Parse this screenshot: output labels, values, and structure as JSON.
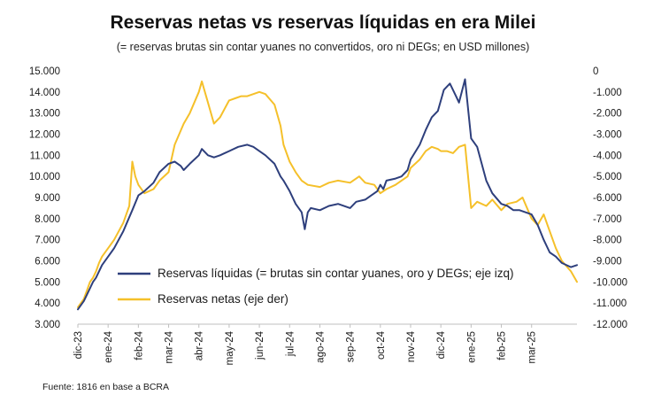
{
  "chart_data": {
    "type": "line",
    "title": "Reservas netas vs reservas líquidas en era Milei",
    "subtitle": "(= reservas brutas sin contar yuanes no convertidos, oro ni DEGs; en USD millones)",
    "source": "Fuente: 1816 en base a BCRA",
    "x_tick_labels": [
      "dic-23",
      "ene-24",
      "feb-24",
      "mar-24",
      "abr-24",
      "may-24",
      "jun-24",
      "jul-24",
      "ago-24",
      "sep-24",
      "oct-24",
      "nov-24",
      "dic-24",
      "ene-25",
      "feb-25",
      "mar-25"
    ],
    "y_left": {
      "ylim": [
        3000,
        15000
      ],
      "tick_labels": [
        "3.000",
        "4.000",
        "5.000",
        "6.000",
        "7.000",
        "8.000",
        "9.000",
        "10.000",
        "11.000",
        "12.000",
        "13.000",
        "14.000",
        "15.000"
      ]
    },
    "y_right": {
      "ylim": [
        -12000,
        0
      ],
      "tick_labels": [
        "-12.000",
        "-11.000",
        "-10.000",
        "-9.000",
        "-8.000",
        "-7.000",
        "-6.000",
        "-5.000",
        "-4.000",
        "-3.000",
        "-2.000",
        "-1.000",
        "0"
      ]
    },
    "legend_placement": "bottom-left",
    "series": [
      {
        "name": "Reservas líquidas (= brutas sin contar yuanes, oro y DEGs; eje izq)",
        "axis": "left",
        "color": "#2e3f7c",
        "x": [
          0,
          0.1,
          0.2,
          0.3,
          0.4,
          0.5,
          0.6,
          0.7,
          0.8,
          1.0,
          1.2,
          1.5,
          1.8,
          2.0,
          2.2,
          2.5,
          2.7,
          3.0,
          3.2,
          3.4,
          3.5,
          3.7,
          4.0,
          4.1,
          4.3,
          4.5,
          4.7,
          5.0,
          5.3,
          5.6,
          5.8,
          6.0,
          6.2,
          6.5,
          6.7,
          6.8,
          7.0,
          7.2,
          7.4,
          7.5,
          7.6,
          7.7,
          8.0,
          8.3,
          8.6,
          9.0,
          9.2,
          9.5,
          9.7,
          9.9,
          10.0,
          10.1,
          10.2,
          10.5,
          10.7,
          10.9,
          11.0,
          11.3,
          11.5,
          11.7,
          11.9,
          12.0,
          12.1,
          12.3,
          12.5,
          12.6,
          12.8,
          13.0,
          13.2,
          13.5,
          13.7,
          14.0,
          14.2,
          14.4,
          14.6,
          14.8,
          15.0,
          15.2,
          15.4,
          15.6,
          15.8,
          16.0,
          16.3,
          16.5
        ],
        "values": [
          3700,
          3900,
          4100,
          4400,
          4700,
          5000,
          5200,
          5500,
          5800,
          6200,
          6600,
          7400,
          8400,
          9100,
          9300,
          9700,
          10200,
          10600,
          10700,
          10500,
          10300,
          10600,
          11000,
          11300,
          11000,
          10900,
          11000,
          11200,
          11400,
          11500,
          11400,
          11200,
          11000,
          10600,
          10000,
          9800,
          9300,
          8700,
          8300,
          7500,
          8300,
          8500,
          8400,
          8600,
          8700,
          8500,
          8800,
          8900,
          9100,
          9300,
          9600,
          9400,
          9800,
          9900,
          10000,
          10300,
          10800,
          11500,
          12200,
          12800,
          13100,
          13600,
          14100,
          14400,
          13800,
          13500,
          14600,
          11800,
          11400,
          9800,
          9200,
          8700,
          8600,
          8400,
          8400,
          8300,
          8200,
          7700,
          7000,
          6400,
          6200,
          5900,
          5700,
          5800
        ]
      },
      {
        "name": "Reservas netas (eje der)",
        "axis": "right",
        "color": "#f5c02a",
        "x": [
          0,
          0.1,
          0.2,
          0.3,
          0.4,
          0.5,
          0.6,
          0.7,
          0.8,
          1.0,
          1.2,
          1.5,
          1.7,
          1.8,
          1.9,
          2.0,
          2.2,
          2.5,
          2.7,
          3.0,
          3.2,
          3.5,
          3.7,
          4.0,
          4.1,
          4.3,
          4.5,
          4.7,
          5.0,
          5.2,
          5.4,
          5.6,
          5.8,
          6.0,
          6.2,
          6.5,
          6.7,
          6.8,
          7.0,
          7.2,
          7.4,
          7.6,
          8.0,
          8.3,
          8.6,
          9.0,
          9.3,
          9.5,
          9.8,
          10.0,
          10.2,
          10.5,
          10.7,
          10.9,
          11.0,
          11.3,
          11.5,
          11.7,
          11.9,
          12.0,
          12.2,
          12.4,
          12.6,
          12.8,
          13.0,
          13.2,
          13.5,
          13.7,
          14.0,
          14.2,
          14.5,
          14.7,
          15.0,
          15.2,
          15.4,
          15.6,
          15.8,
          16.0,
          16.3,
          16.5
        ],
        "values": [
          -11200,
          -11000,
          -10800,
          -10400,
          -10000,
          -9800,
          -9500,
          -9100,
          -8800,
          -8400,
          -8000,
          -7200,
          -6400,
          -4300,
          -5000,
          -5400,
          -5800,
          -5600,
          -5200,
          -4800,
          -3500,
          -2500,
          -2000,
          -1000,
          -500,
          -1500,
          -2500,
          -2200,
          -1400,
          -1300,
          -1200,
          -1200,
          -1100,
          -1000,
          -1100,
          -1600,
          -2600,
          -3500,
          -4300,
          -4800,
          -5200,
          -5400,
          -5500,
          -5300,
          -5200,
          -5300,
          -5000,
          -5300,
          -5400,
          -5800,
          -5600,
          -5400,
          -5200,
          -5000,
          -4600,
          -4200,
          -3800,
          -3600,
          -3700,
          -3800,
          -3800,
          -3900,
          -3600,
          -3500,
          -6500,
          -6200,
          -6400,
          -6100,
          -6600,
          -6300,
          -6200,
          -6000,
          -7000,
          -7300,
          -6800,
          -7600,
          -8400,
          -9000,
          -9500,
          -10000
        ]
      }
    ]
  }
}
